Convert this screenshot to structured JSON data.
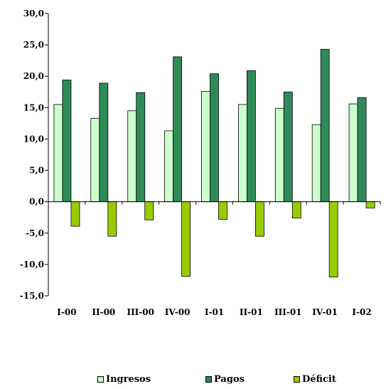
{
  "chart_data": {
    "type": "bar",
    "categories": [
      "I-00",
      "II-00",
      "III-00",
      "IV-00",
      "I-01",
      "II-01",
      "III-01",
      "IV-01",
      "I-02"
    ],
    "series": [
      {
        "name": "Ingresos",
        "color": "#ccffcc",
        "values": [
          15.5,
          13.3,
          14.5,
          11.3,
          17.6,
          15.5,
          14.9,
          12.3,
          15.6
        ]
      },
      {
        "name": "Pagos",
        "color": "#2e8b57",
        "values": [
          19.4,
          18.9,
          17.4,
          23.1,
          20.4,
          20.9,
          17.5,
          24.3,
          16.6
        ]
      },
      {
        "name": "Déficit",
        "color": "#99cc00",
        "values": [
          -3.9,
          -5.5,
          -2.9,
          -11.9,
          -2.8,
          -5.5,
          -2.6,
          -12.0,
          -1.0
        ]
      }
    ],
    "ylim": [
      -15,
      30
    ],
    "yticks": [
      "30,0",
      "25,0",
      "20,0",
      "15,0",
      "10,0",
      "5,0",
      "0,0",
      "-5,0",
      "-10,0",
      "-15,0"
    ],
    "ytick_values": [
      30,
      25,
      20,
      15,
      10,
      5,
      0,
      -5,
      -10,
      -15
    ],
    "title": "",
    "xlabel": "",
    "ylabel": "",
    "grid": false,
    "legend_position": "bottom"
  }
}
